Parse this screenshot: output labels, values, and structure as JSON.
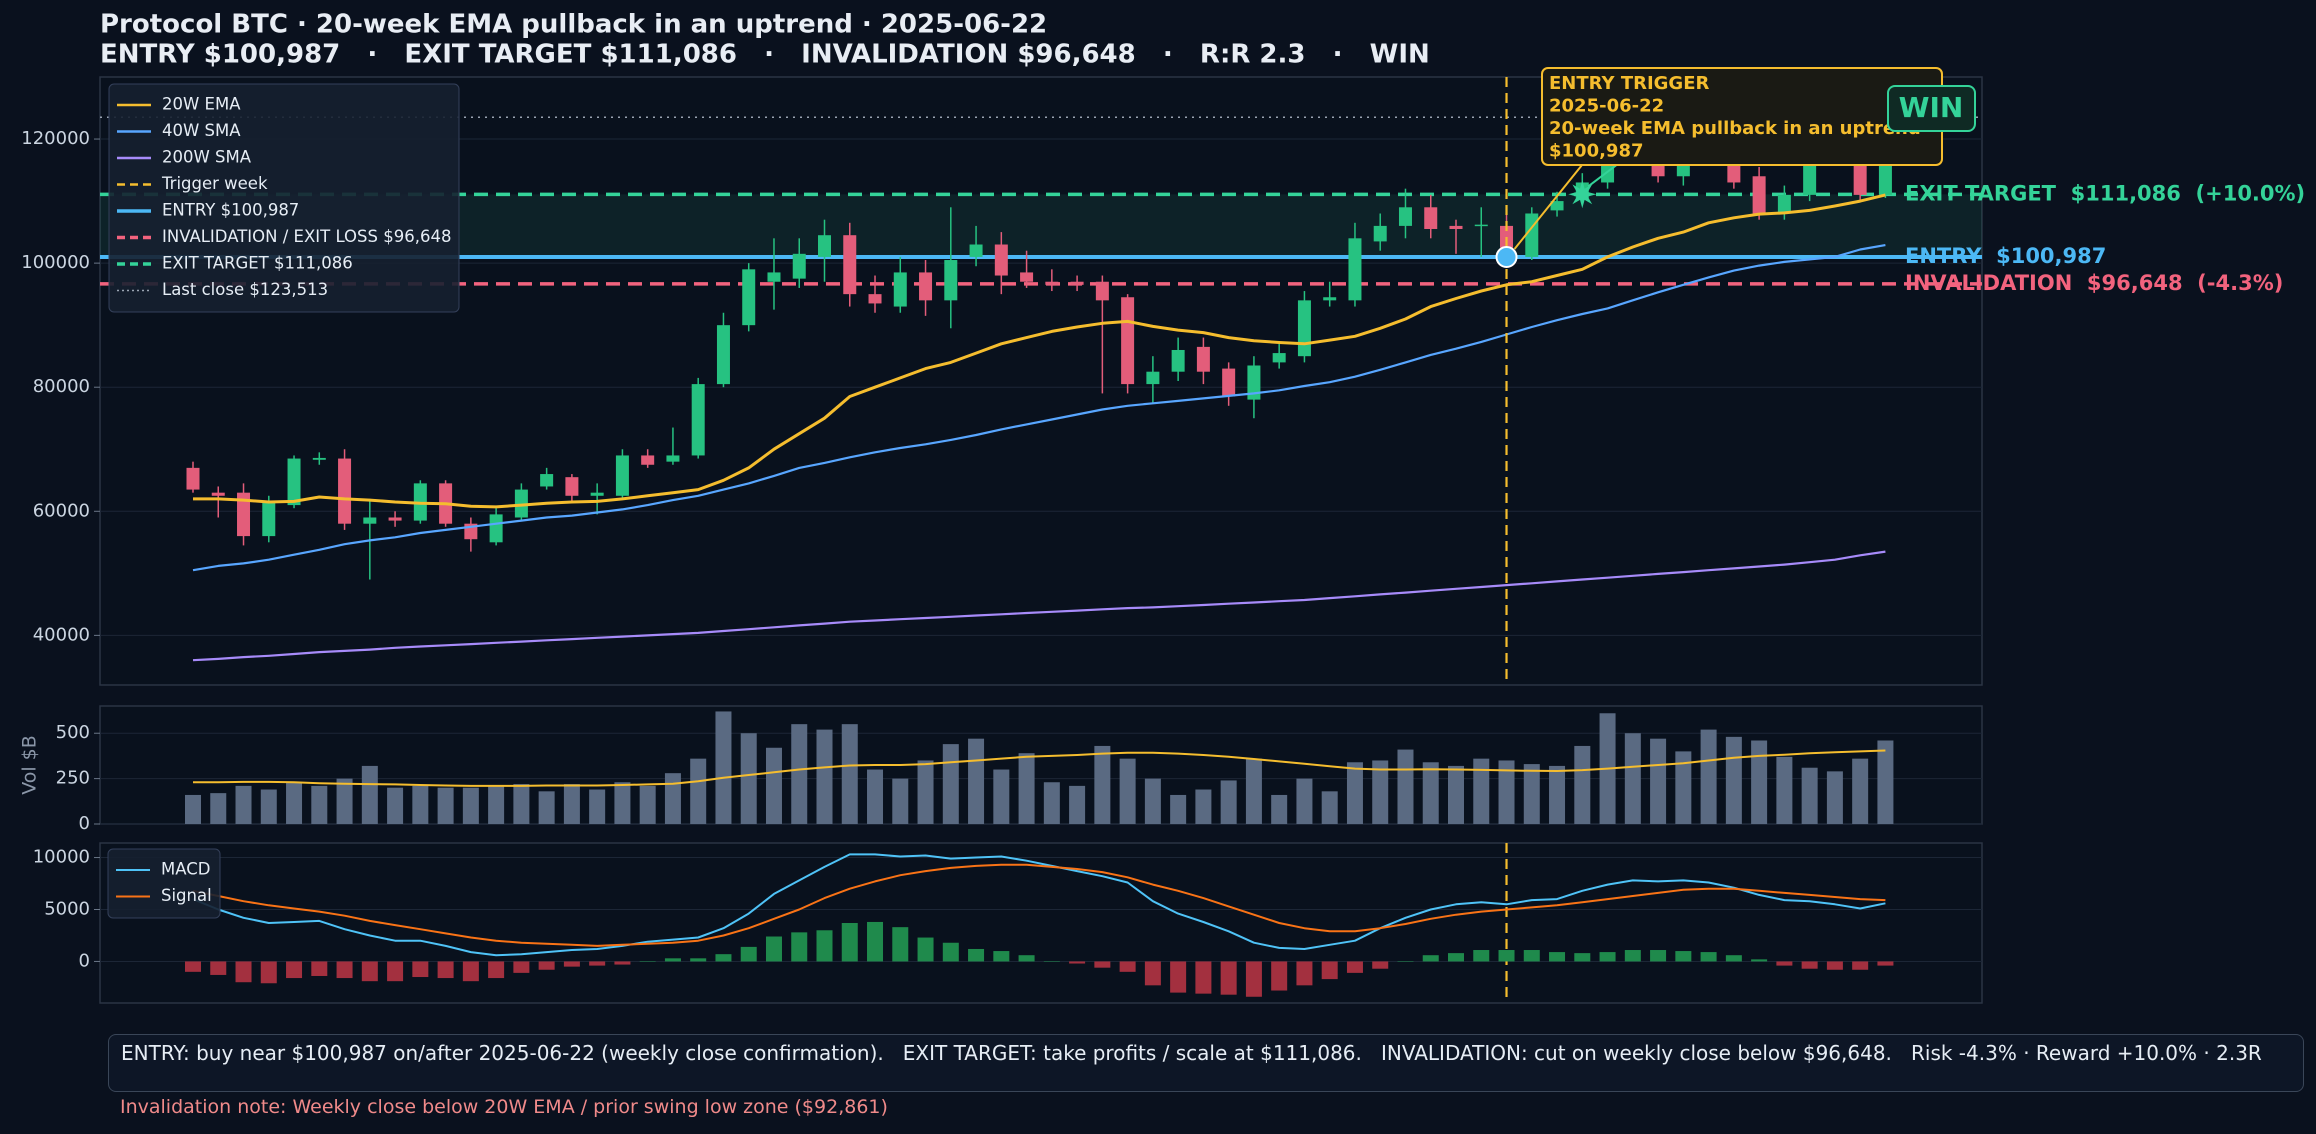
{
  "header": {
    "title": "Protocol BTC · 20-week EMA pullback in an uptrend · 2025-06-22",
    "subtitle": "ENTRY $100,987   ·   EXIT TARGET $111,086   ·   INVALIDATION $96,648   ·   R:R 2.3   ·   WIN"
  },
  "chart_data": [
    {
      "type": "candlestick",
      "open": [
        67000,
        63000,
        63000,
        56000,
        61000,
        68300,
        68500,
        58000,
        59000,
        58500,
        64500,
        58000,
        55000,
        59000,
        64000,
        65500,
        62500,
        62500,
        69000,
        68000,
        69000,
        80500,
        90000,
        97000,
        97500,
        101000,
        104500,
        95000,
        93000,
        98500,
        94000,
        101000,
        103000,
        98500,
        97000,
        97000,
        97000,
        94500,
        80500,
        82500,
        86500,
        83000,
        78000,
        84000,
        85000,
        94000,
        94000,
        103500,
        106000,
        109000,
        106000,
        106000,
        106000,
        101000,
        108500,
        110500,
        113000,
        118000,
        122000,
        114000,
        121000,
        118000,
        114000,
        108000,
        111000,
        117000,
        118000,
        111000
      ],
      "high": [
        68000,
        64000,
        64500,
        62500,
        69000,
        69500,
        70000,
        62000,
        60000,
        65000,
        65000,
        59000,
        60500,
        64500,
        67000,
        66000,
        64500,
        70000,
        70000,
        73500,
        81500,
        92000,
        100000,
        104000,
        104000,
        107000,
        106500,
        98000,
        101000,
        100500,
        109000,
        106000,
        105000,
        102000,
        99000,
        98000,
        98000,
        95000,
        85000,
        88000,
        88000,
        84000,
        85000,
        87000,
        95500,
        97000,
        106500,
        108000,
        112000,
        111000,
        107000,
        109000,
        108000,
        109000,
        111500,
        114500,
        119500,
        124000,
        123500,
        117500,
        122500,
        119500,
        115500,
        112500,
        118500,
        122000,
        119500,
        125000
      ],
      "low": [
        63000,
        59000,
        54500,
        55000,
        60500,
        67500,
        57000,
        49000,
        57500,
        58000,
        57500,
        53500,
        54500,
        58500,
        63500,
        61500,
        59500,
        62000,
        67000,
        67500,
        68500,
        80000,
        89000,
        92500,
        96000,
        97000,
        93000,
        92000,
        92000,
        91500,
        89500,
        99500,
        95000,
        96000,
        95500,
        95500,
        79000,
        79000,
        77500,
        81000,
        80500,
        77000,
        75000,
        83000,
        84000,
        93000,
        93000,
        102000,
        104000,
        104000,
        101500,
        101000,
        101500,
        100500,
        107500,
        109500,
        112000,
        117000,
        113000,
        112500,
        116000,
        112000,
        107000,
        107000,
        110000,
        116000,
        110000,
        110500
      ],
      "close": [
        63500,
        62500,
        56000,
        61500,
        68500,
        68600,
        58000,
        59000,
        58500,
        64500,
        58000,
        55500,
        59500,
        63500,
        66000,
        62500,
        63000,
        69000,
        67500,
        69000,
        80500,
        90000,
        99000,
        98500,
        101500,
        104500,
        95000,
        93500,
        98500,
        94000,
        100500,
        103000,
        98000,
        97000,
        96500,
        96500,
        94000,
        80500,
        82500,
        86000,
        82500,
        78500,
        83500,
        85500,
        94000,
        94500,
        104000,
        106000,
        109000,
        105500,
        105500,
        106200,
        102500,
        108000,
        110000,
        113000,
        118000,
        122000,
        114000,
        116000,
        117000,
        113000,
        108000,
        111000,
        117000,
        120000,
        111000,
        123513
      ],
      "up_color": "#26c281",
      "down_color": "#e35d7a",
      "series": [
        {
          "name": "20W EMA",
          "color": "#f5bd2e",
          "values": [
            62000,
            62000,
            61800,
            61500,
            61600,
            62300,
            62000,
            61800,
            61500,
            61300,
            61200,
            60800,
            60700,
            61000,
            61300,
            61500,
            61600,
            62000,
            62500,
            63000,
            63500,
            65000,
            67000,
            70000,
            72500,
            75000,
            78500,
            80000,
            81500,
            83000,
            84000,
            85500,
            87000,
            88000,
            89000,
            89700,
            90300,
            90600,
            89800,
            89200,
            88800,
            88000,
            87500,
            87200,
            87000,
            87600,
            88200,
            89500,
            91000,
            93000,
            94300,
            95500,
            96500,
            97000,
            98000,
            99000,
            101000,
            102600,
            104000,
            105000,
            106500,
            107300,
            107900,
            108100,
            108500,
            109200,
            110000,
            111000
          ]
        },
        {
          "name": "40W SMA",
          "color": "#58a6ff",
          "values": [
            50500,
            51200,
            51600,
            52200,
            53000,
            53800,
            54700,
            55300,
            55800,
            56500,
            57000,
            57500,
            58000,
            58500,
            59000,
            59300,
            59800,
            60300,
            61000,
            61800,
            62500,
            63500,
            64500,
            65700,
            67000,
            67800,
            68700,
            69500,
            70200,
            70800,
            71500,
            72300,
            73200,
            74000,
            74800,
            75600,
            76400,
            77000,
            77400,
            77800,
            78200,
            78600,
            79000,
            79500,
            80200,
            80800,
            81700,
            82800,
            84000,
            85200,
            86200,
            87300,
            88500,
            89700,
            90800,
            91800,
            92700,
            94000,
            95300,
            96500,
            97700,
            98800,
            99600,
            100200,
            100600,
            101000,
            102200,
            102900
          ]
        },
        {
          "name": "200W SMA",
          "color": "#a78bfa",
          "values": [
            36000,
            36200,
            36500,
            36700,
            37000,
            37300,
            37500,
            37700,
            38000,
            38200,
            38400,
            38600,
            38800,
            39000,
            39200,
            39400,
            39600,
            39800,
            40000,
            40200,
            40400,
            40700,
            41000,
            41300,
            41600,
            41900,
            42200,
            42400,
            42600,
            42800,
            43000,
            43200,
            43400,
            43600,
            43800,
            44000,
            44200,
            44400,
            44500,
            44700,
            44900,
            45100,
            45300,
            45500,
            45700,
            46000,
            46300,
            46600,
            46900,
            47200,
            47500,
            47800,
            48100,
            48400,
            48700,
            49000,
            49300,
            49600,
            49900,
            50200,
            50500,
            50800,
            51100,
            51400,
            51800,
            52200,
            52900,
            53500
          ]
        }
      ],
      "trigger": {
        "name": "Trigger week",
        "index": 52,
        "color": "#f5bd2e"
      },
      "levels": [
        {
          "name": "ENTRY $100,987",
          "value": 100987,
          "color": "#4cb8f5",
          "style": "solid",
          "label": "ENTRY  $100,987"
        },
        {
          "name": "INVALIDATION / EXIT LOSS $96,648",
          "value": 96648,
          "color": "#f2637e",
          "style": "dashed",
          "label": "INVALIDATION  $96,648  (-4.3%)"
        },
        {
          "name": "EXIT TARGET $111,086",
          "value": 111086,
          "color": "#34d399",
          "style": "dashed",
          "label": "EXIT TARGET  $111,086  (+10.0%)"
        },
        {
          "name": "Last close $123,513",
          "value": 123513,
          "color": "#9aa4b2",
          "style": "dotted"
        }
      ],
      "exit_marker": {
        "index": 55,
        "value": 111086,
        "color": "#34d399"
      },
      "annotation": {
        "lines": [
          "ENTRY TRIGGER",
          "2025-06-22",
          "20-week EMA pullback in an uptrend",
          "$100,987"
        ],
        "color": "#f5bd2e"
      },
      "badge": "WIN",
      "ylim": [
        32000,
        130000
      ],
      "yticks": [
        40000,
        60000,
        80000,
        100000,
        120000
      ],
      "grid": true,
      "legend": "upper left"
    },
    {
      "type": "bar",
      "ylabel": "Vol $B",
      "values": [
        160,
        170,
        210,
        190,
        230,
        210,
        250,
        320,
        200,
        210,
        200,
        200,
        210,
        220,
        180,
        220,
        190,
        230,
        210,
        280,
        360,
        620,
        500,
        420,
        550,
        520,
        550,
        300,
        250,
        350,
        440,
        470,
        300,
        390,
        230,
        210,
        430,
        360,
        250,
        160,
        190,
        240,
        360,
        160,
        250,
        180,
        340,
        350,
        410,
        340,
        320,
        360,
        350,
        330,
        320,
        430,
        610,
        500,
        470,
        400,
        520,
        480,
        460,
        370,
        310,
        290,
        360,
        460
      ],
      "color": "#5a6a82",
      "ma": {
        "color": "#f5bd2e",
        "values": [
          230,
          230,
          232,
          232,
          230,
          225,
          222,
          220,
          218,
          215,
          212,
          210,
          210,
          210,
          212,
          212,
          212,
          215,
          218,
          222,
          235,
          255,
          270,
          285,
          300,
          312,
          322,
          325,
          325,
          330,
          340,
          350,
          360,
          370,
          375,
          380,
          388,
          392,
          392,
          388,
          380,
          370,
          358,
          345,
          332,
          318,
          305,
          300,
          300,
          302,
          300,
          298,
          295,
          293,
          292,
          297,
          305,
          315,
          325,
          335,
          350,
          365,
          375,
          382,
          390,
          395,
          400,
          405
        ]
      },
      "ylim": [
        0,
        650
      ],
      "yticks": [
        0,
        250,
        500
      ],
      "grid": true
    },
    {
      "type": "macd",
      "series": [
        {
          "name": "MACD",
          "color": "#4fc3f7",
          "values": [
            6000,
            5000,
            4200,
            3700,
            3800,
            3900,
            3100,
            2500,
            2000,
            2000,
            1500,
            900,
            600,
            700,
            900,
            1100,
            1200,
            1500,
            1900,
            2100,
            2300,
            3200,
            4600,
            6500,
            7800,
            9100,
            10300,
            10300,
            10100,
            10200,
            9900,
            10000,
            10100,
            9700,
            9200,
            8700,
            8200,
            7600,
            5800,
            4600,
            3800,
            2900,
            1800,
            1300,
            1200,
            1600,
            2000,
            3200,
            4200,
            5000,
            5500,
            5700,
            5500,
            5900,
            6000,
            6800,
            7400,
            7800,
            7700,
            7800,
            7600,
            7100,
            6400,
            5900,
            5800,
            5500,
            5100,
            5600
          ]
        },
        {
          "name": "Signal",
          "color": "#f97316",
          "values": [
            6800,
            6300,
            5800,
            5400,
            5100,
            4800,
            4400,
            3900,
            3500,
            3100,
            2700,
            2300,
            2000,
            1800,
            1700,
            1600,
            1500,
            1600,
            1700,
            1800,
            2000,
            2500,
            3200,
            4100,
            5000,
            6100,
            7000,
            7700,
            8300,
            8700,
            9000,
            9200,
            9300,
            9300,
            9100,
            8900,
            8600,
            8100,
            7400,
            6800,
            6100,
            5300,
            4500,
            3700,
            3200,
            2900,
            2900,
            3200,
            3600,
            4100,
            4500,
            4800,
            5000,
            5200,
            5400,
            5700,
            6000,
            6300,
            6600,
            6900,
            7000,
            7000,
            6800,
            6600,
            6400,
            6200,
            6000,
            5900
          ]
        }
      ],
      "histogram": {
        "up_color": "#1f8a4c",
        "down_color": "#a3303f",
        "values": [
          -1000,
          -1300,
          -2000,
          -2100,
          -1600,
          -1400,
          -1600,
          -1900,
          -1900,
          -1500,
          -1600,
          -1900,
          -1600,
          -1100,
          -800,
          -500,
          -400,
          -300,
          0,
          300,
          300,
          700,
          1400,
          2400,
          2800,
          3000,
          3700,
          3800,
          3300,
          2300,
          1800,
          1200,
          1000,
          600,
          0,
          -200,
          -600,
          -1000,
          -2300,
          -3000,
          -3100,
          -3200,
          -3400,
          -2800,
          -2300,
          -1700,
          -1100,
          -700,
          0,
          600,
          800,
          1100,
          1100,
          1100,
          900,
          800,
          900,
          1100,
          1100,
          1000,
          900,
          600,
          200,
          -400,
          -700,
          -800,
          -800,
          -400
        ]
      },
      "ylim": [
        -4000,
        11400
      ],
      "yticks": [
        0,
        5000,
        10000
      ],
      "grid": true,
      "legend": "upper left"
    }
  ],
  "footer": {
    "summary": "ENTRY: buy near $100,987 on/after 2025-06-22 (weekly close confirmation).   EXIT TARGET: take profits / scale at $111,086.   INVALIDATION: cut on weekly close below $96,648.   Risk -4.3% · Reward +10.0% · 2.3R",
    "note": "Invalidation note: Weekly close below 20W EMA / prior swing low zone ($92,861)"
  }
}
